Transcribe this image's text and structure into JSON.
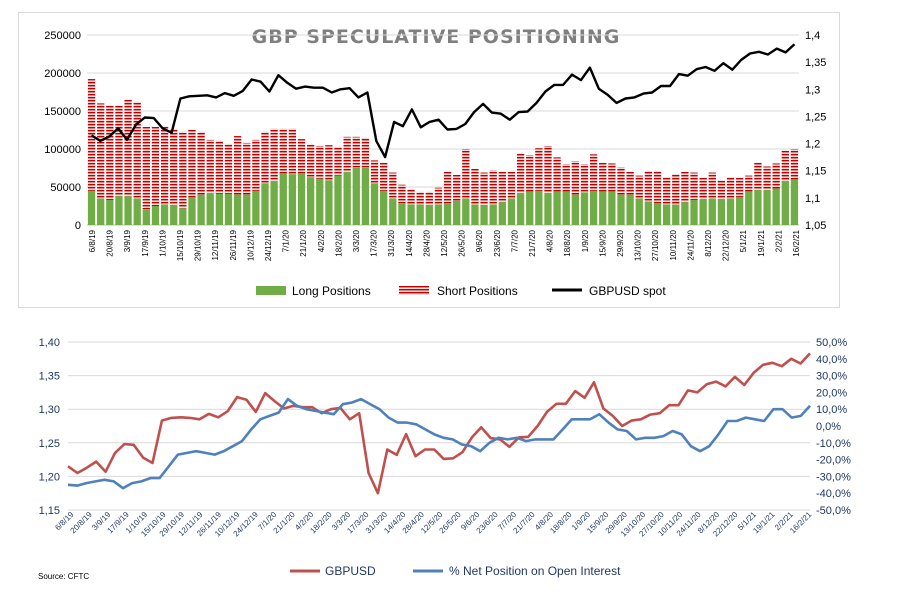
{
  "chart_data": [
    {
      "type": "bar",
      "title": "GBP SPECULATIVE POSITIONING",
      "stacked": true,
      "x_tick_labels": [
        "6/8/19",
        "20/8/19",
        "3/9/19",
        "17/9/19",
        "1/10/19",
        "15/10/19",
        "29/10/19",
        "12/11/19",
        "26/11/19",
        "10/12/19",
        "24/12/19",
        "7/1/20",
        "21/1/20",
        "4/2/20",
        "18/2/20",
        "3/3/20",
        "17/3/20",
        "31/3/20",
        "14/4/20",
        "28/4/20",
        "12/5/20",
        "26/5/20",
        "9/6/20",
        "23/6/20",
        "7/7/20",
        "21/7/20",
        "4/8/20",
        "18/8/20",
        "1/9/20",
        "15/9/20",
        "29/9/20",
        "13/10/20",
        "27/10/20",
        "10/11/20",
        "24/11/20",
        "8/12/20",
        "22/12/20",
        "5/1/21",
        "19/1/21",
        "2/2/21",
        "16/2/21"
      ],
      "y_left": {
        "ylim": [
          0,
          250000
        ],
        "ticks": [
          "0",
          "50000",
          "100000",
          "150000",
          "200000",
          "250000"
        ]
      },
      "y_right": {
        "ylim": [
          1.05,
          1.4
        ],
        "ticks": [
          "1,05",
          "1,1",
          "1,15",
          "1,2",
          "1,25",
          "1,3",
          "1,35",
          "1,4"
        ]
      },
      "series": [
        {
          "name": "Long Positions",
          "kind": "bar",
          "color": "#70ad47",
          "values": [
            45000,
            35000,
            33000,
            38000,
            38000,
            35000,
            20000,
            25000,
            27000,
            26000,
            22000,
            36000,
            40000,
            42000,
            41000,
            41000,
            40000,
            40000,
            45000,
            55000,
            58000,
            68000,
            67000,
            68000,
            63000,
            61000,
            59000,
            65000,
            70000,
            75000,
            75000,
            55000,
            45000,
            35000,
            28000,
            27000,
            27000,
            26000,
            27000,
            28000,
            32000,
            35000,
            27000,
            26000,
            27000,
            30000,
            35000,
            42000,
            44000,
            45000,
            42000,
            44000,
            44000,
            40000,
            43000,
            45000,
            44000,
            44000,
            40000,
            40000,
            35000,
            31000,
            29000,
            27000,
            27000,
            30000,
            33000,
            34000,
            35000,
            34000,
            35000,
            37000,
            44000,
            46000,
            46000,
            48000,
            58000,
            60000
          ]
        },
        {
          "name": "Short Positions",
          "kind": "bar",
          "color": "#c00000",
          "values": [
            147000,
            125000,
            124000,
            119000,
            127000,
            127000,
            109000,
            104000,
            103000,
            100000,
            101000,
            89000,
            83000,
            70000,
            70000,
            66000,
            77000,
            68000,
            67000,
            68000,
            69000,
            59000,
            60000,
            45000,
            43000,
            43000,
            46000,
            38000,
            46000,
            41000,
            40000,
            30000,
            37000,
            34000,
            25000,
            20000,
            17000,
            18000,
            22000,
            42000,
            34000,
            65000,
            47000,
            43000,
            45000,
            40000,
            35000,
            52000,
            48000,
            56000,
            62000,
            45000,
            36000,
            44000,
            37000,
            48000,
            38000,
            37000,
            36000,
            30000,
            30000,
            40000,
            42000,
            36000,
            40000,
            40000,
            36000,
            28000,
            34000,
            25000,
            28000,
            25000,
            21000,
            36000,
            31000,
            33000,
            40000,
            40000
          ]
        },
        {
          "name": "GBPUSD spot",
          "kind": "line",
          "axis": "right",
          "color": "#000000",
          "values": [
            1.215,
            1.205,
            1.213,
            1.228,
            1.207,
            1.235,
            1.248,
            1.247,
            1.228,
            1.22,
            1.283,
            1.287,
            1.288,
            1.289,
            1.285,
            1.293,
            1.288,
            1.297,
            1.318,
            1.314,
            1.296,
            1.326,
            1.312,
            1.301,
            1.305,
            1.303,
            1.303,
            1.294,
            1.3,
            1.302,
            1.285,
            1.294,
            1.205,
            1.175,
            1.24,
            1.232,
            1.263,
            1.23,
            1.24,
            1.244,
            1.226,
            1.227,
            1.236,
            1.258,
            1.273,
            1.257,
            1.255,
            1.244,
            1.258,
            1.259,
            1.275,
            1.296,
            1.308,
            1.308,
            1.327,
            1.317,
            1.34,
            1.301,
            1.29,
            1.275,
            1.283,
            1.285,
            1.292,
            1.294,
            1.306,
            1.306,
            1.328,
            1.325,
            1.337,
            1.341,
            1.334,
            1.348,
            1.336,
            1.354,
            1.366,
            1.369,
            1.364,
            1.375,
            1.368,
            1.383
          ]
        }
      ]
    },
    {
      "type": "line",
      "x_tick_labels": [
        "6/8/19",
        "20/8/19",
        "3/9/19",
        "17/9/19",
        "1/10/19",
        "15/10/19",
        "29/10/19",
        "12/11/19",
        "26/11/19",
        "10/12/19",
        "24/12/19",
        "7/1/20",
        "21/1/20",
        "4/2/20",
        "18/2/20",
        "3/3/20",
        "17/3/20",
        "31/3/20",
        "14/4/20",
        "28/4/20",
        "12/5/20",
        "26/5/20",
        "9/6/20",
        "23/6/20",
        "7/7/20",
        "21/7/20",
        "4/8/20",
        "18/8/20",
        "1/9/20",
        "15/9/20",
        "29/9/20",
        "13/10/20",
        "27/10/20",
        "10/11/20",
        "24/11/20",
        "8/12/20",
        "22/12/20",
        "5/1/21",
        "19/1/21",
        "2/2/21",
        "16/2/21"
      ],
      "y_left": {
        "ylim": [
          1.15,
          1.4
        ],
        "ticks": [
          "1,15",
          "1,20",
          "1,25",
          "1,30",
          "1,35",
          "1,40"
        ]
      },
      "y_right": {
        "ylim": [
          -50,
          50
        ],
        "ticks": [
          "-50,0%",
          "-40,0%",
          "-30,0%",
          "-20,0%",
          "-10,0%",
          "0,0%",
          "10,0%",
          "20,0%",
          "30,0%",
          "40,0%",
          "50,0%"
        ]
      },
      "series": [
        {
          "name": "GBPUSD",
          "axis": "left",
          "color": "#c0504d",
          "values": [
            1.215,
            1.205,
            1.213,
            1.222,
            1.207,
            1.235,
            1.248,
            1.247,
            1.228,
            1.22,
            1.283,
            1.287,
            1.288,
            1.287,
            1.285,
            1.293,
            1.288,
            1.297,
            1.318,
            1.314,
            1.296,
            1.324,
            1.312,
            1.301,
            1.305,
            1.303,
            1.303,
            1.294,
            1.3,
            1.302,
            1.285,
            1.294,
            1.205,
            1.175,
            1.24,
            1.232,
            1.263,
            1.23,
            1.24,
            1.24,
            1.226,
            1.227,
            1.236,
            1.258,
            1.273,
            1.257,
            1.255,
            1.244,
            1.258,
            1.259,
            1.275,
            1.296,
            1.308,
            1.308,
            1.327,
            1.317,
            1.34,
            1.301,
            1.29,
            1.275,
            1.283,
            1.285,
            1.292,
            1.294,
            1.306,
            1.306,
            1.328,
            1.325,
            1.337,
            1.341,
            1.334,
            1.348,
            1.336,
            1.354,
            1.366,
            1.369,
            1.364,
            1.375,
            1.368,
            1.383
          ]
        },
        {
          "name": "% Net Position on Open Interest",
          "axis": "right",
          "color": "#4f81bd",
          "values": [
            -35,
            -35.5,
            -34,
            -33,
            -32,
            -33,
            -37,
            -34,
            -33,
            -31,
            -31,
            -24,
            -17,
            -16,
            -15,
            -16,
            -17,
            -15,
            -12,
            -9,
            -2,
            4,
            6,
            8,
            16,
            12,
            10,
            9,
            8,
            7,
            13,
            14,
            16,
            13,
            10,
            5,
            2,
            2,
            1,
            -2,
            -5,
            -7,
            -8,
            -11,
            -12,
            -15,
            -10,
            -7,
            -8,
            -7,
            -9,
            -8,
            -8,
            -8,
            -2,
            4,
            4,
            4,
            7,
            2,
            -2,
            -3,
            -8,
            -7,
            -7,
            -6,
            -3,
            -5,
            -12,
            -15,
            -12,
            -5,
            3,
            3,
            5,
            4,
            3,
            10,
            10,
            5,
            6,
            12
          ]
        }
      ]
    }
  ],
  "chart1": {
    "title": "GBP SPECULATIVE POSITIONING",
    "legend": {
      "long": "Long Positions",
      "short": "Short Positions",
      "spot": "GBPUSD spot"
    }
  },
  "chart2": {
    "legend": {
      "gbpusd": "GBPUSD",
      "net": "% Net Position on Open Interest"
    },
    "source": "Source: CFTC"
  },
  "colors": {
    "long": "#70ad47",
    "short": "#c00000",
    "spot": "#000000",
    "gbpusd": "#c0504d",
    "net": "#4f81bd"
  }
}
